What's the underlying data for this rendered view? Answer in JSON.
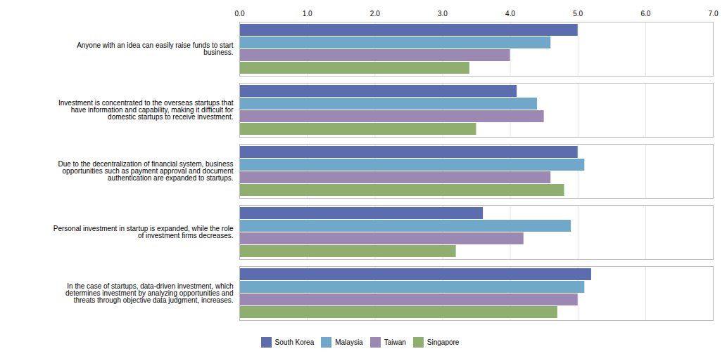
{
  "chart_data": {
    "type": "bar",
    "orientation": "horizontal",
    "categories": [
      "Anyone with an idea can easily raise funds to start\nbusiness.",
      "Investment is concentrated to the overseas startups that\nhave information and capability, making it difficult for\ndomestic startups to receive investment.",
      "Due to the decentralization of financial system, business\nopportunities such as payment approval and document\nauthentication are expanded to startups.",
      "Personal investment in startup is expanded, while the role\nof investment firms decreases.",
      "In the case of startups, data-driven investment, which\ndetermines investment by analyzing opportunities and\nthreats through objective data judgment, increases."
    ],
    "series": [
      {
        "name": "South Korea",
        "color": "#5B6DAE",
        "values": [
          5.0,
          4.1,
          5.0,
          3.6,
          5.2
        ]
      },
      {
        "name": "Malaysia",
        "color": "#6FA8C9",
        "values": [
          4.6,
          4.4,
          5.1,
          4.9,
          5.1
        ]
      },
      {
        "name": "Taiwan",
        "color": "#9B89B4",
        "values": [
          4.0,
          4.5,
          4.6,
          4.2,
          5.0
        ]
      },
      {
        "name": "Singapore",
        "color": "#8FAF6E",
        "values": [
          3.4,
          3.5,
          4.8,
          3.2,
          4.7
        ]
      }
    ],
    "xlim": [
      0,
      7
    ],
    "xticks": [
      0,
      1,
      2,
      3,
      4,
      5,
      6,
      7
    ],
    "grid": true,
    "legend": "bottom"
  }
}
